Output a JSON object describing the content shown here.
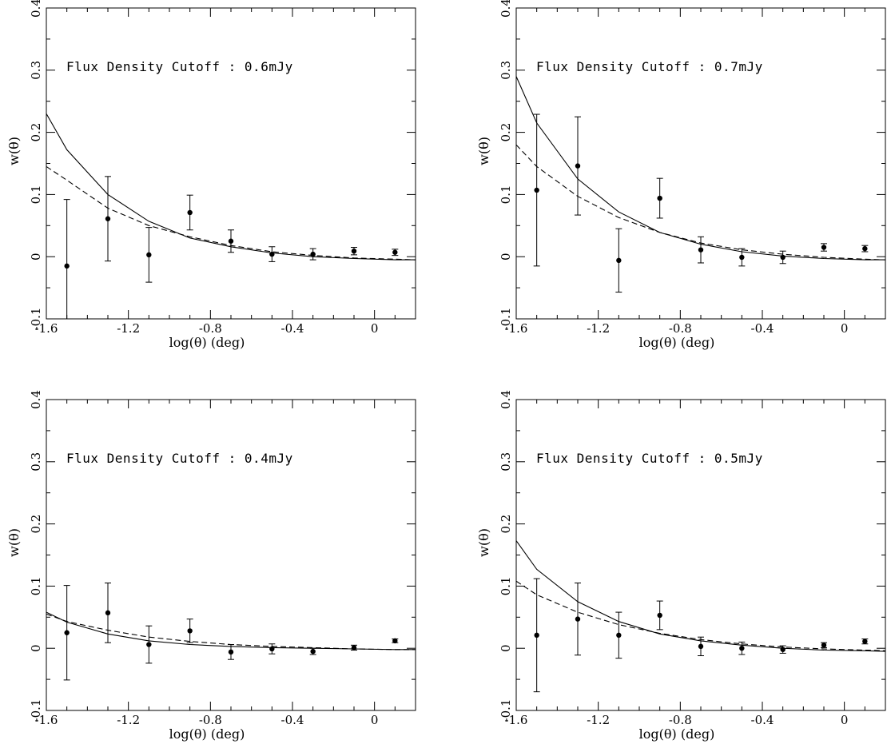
{
  "chart_data": [
    {
      "type": "line",
      "annotation": "Flux Density Cutoff : 0.6mJy",
      "xlabel": "log(θ) (deg)",
      "ylabel": "w(θ)",
      "xlim": [
        -1.6,
        0.2
      ],
      "ylim": [
        -0.1,
        0.4
      ],
      "xticks": [
        -1.6,
        -1.2,
        -0.8,
        -0.4,
        0
      ],
      "xtick_labels": [
        "-1.6",
        "-1.2",
        "-0.8",
        "-0.4",
        "0"
      ],
      "yticks": [
        -0.1,
        0,
        0.1,
        0.2,
        0.3,
        0.4
      ],
      "ytick_labels": [
        "-0.1",
        "0",
        "0.1",
        "0.2",
        "0.3",
        "0.4"
      ],
      "grid": false,
      "series": [
        {
          "style": "points_with_errorbars",
          "x": [
            -1.5,
            -1.3,
            -1.1,
            -0.9,
            -0.7,
            -0.5,
            -0.3,
            -0.1,
            0.1
          ],
          "y": [
            -0.015,
            0.061,
            0.003,
            0.071,
            0.025,
            0.004,
            0.004,
            0.009,
            0.007
          ],
          "yerr": [
            0.107,
            0.068,
            0.044,
            0.028,
            0.018,
            0.012,
            0.009,
            0.006,
            0.005
          ]
        },
        {
          "style": "solid",
          "x": [
            -1.6,
            -1.5,
            -1.3,
            -1.1,
            -0.9,
            -0.7,
            -0.5,
            -0.3,
            -0.1,
            0.1,
            0.2
          ],
          "y": [
            0.23,
            0.172,
            0.1,
            0.057,
            0.03,
            0.016,
            0.006,
            0.0,
            -0.003,
            -0.005,
            -0.005
          ]
        },
        {
          "style": "dashed",
          "x": [
            -1.6,
            -1.5,
            -1.3,
            -1.1,
            -0.9,
            -0.7,
            -0.5,
            -0.3,
            -0.1,
            0.1,
            0.2
          ],
          "y": [
            0.145,
            0.123,
            0.078,
            0.05,
            0.032,
            0.018,
            0.008,
            0.002,
            -0.002,
            -0.004,
            -0.005
          ]
        }
      ]
    },
    {
      "type": "line",
      "annotation": "Flux Density Cutoff : 0.7mJy",
      "xlabel": "log(θ) (deg)",
      "ylabel": "w(θ)",
      "xlim": [
        -1.6,
        0.2
      ],
      "ylim": [
        -0.1,
        0.4
      ],
      "xticks": [
        -1.6,
        -1.2,
        -0.8,
        -0.4,
        0
      ],
      "xtick_labels": [
        "-1.6",
        "-1.2",
        "-0.8",
        "-0.4",
        "0"
      ],
      "yticks": [
        -0.1,
        0,
        0.1,
        0.2,
        0.3,
        0.4
      ],
      "ytick_labels": [
        "-0.1",
        "0",
        "0.1",
        "0.2",
        "0.3",
        "0.4"
      ],
      "grid": false,
      "series": [
        {
          "style": "points_with_errorbars",
          "x": [
            -1.5,
            -1.3,
            -1.1,
            -0.9,
            -0.7,
            -0.5,
            -0.3,
            -0.1,
            0.1
          ],
          "y": [
            0.107,
            0.146,
            -0.006,
            0.094,
            0.011,
            -0.001,
            -0.001,
            0.015,
            0.013
          ],
          "yerr": [
            0.122,
            0.079,
            0.051,
            0.032,
            0.021,
            0.014,
            0.01,
            0.006,
            0.005
          ]
        },
        {
          "style": "solid",
          "x": [
            -1.6,
            -1.5,
            -1.3,
            -1.1,
            -0.9,
            -0.7,
            -0.5,
            -0.3,
            -0.1,
            0.1,
            0.2
          ],
          "y": [
            0.29,
            0.215,
            0.125,
            0.072,
            0.039,
            0.02,
            0.008,
            0.001,
            -0.003,
            -0.005,
            -0.005
          ]
        },
        {
          "style": "dashed",
          "x": [
            -1.6,
            -1.5,
            -1.3,
            -1.1,
            -0.9,
            -0.7,
            -0.5,
            -0.3,
            -0.1,
            0.1,
            0.2
          ],
          "y": [
            0.18,
            0.145,
            0.097,
            0.063,
            0.039,
            0.022,
            0.011,
            0.004,
            -0.001,
            -0.004,
            -0.005
          ]
        }
      ]
    },
    {
      "type": "line",
      "annotation": "Flux Density Cutoff : 0.4mJy",
      "xlabel": "log(θ) (deg)",
      "ylabel": "w(θ)",
      "xlim": [
        -1.6,
        0.2
      ],
      "ylim": [
        -0.1,
        0.4
      ],
      "xticks": [
        -1.6,
        -1.2,
        -0.8,
        -0.4,
        0
      ],
      "xtick_labels": [
        "-1.6",
        "-1.2",
        "-0.8",
        "-0.4",
        "0"
      ],
      "yticks": [
        -0.1,
        0,
        0.1,
        0.2,
        0.3,
        0.4
      ],
      "ytick_labels": [
        "-0.1",
        "0",
        "0.1",
        "0.2",
        "0.3",
        "0.4"
      ],
      "grid": false,
      "series": [
        {
          "style": "points_with_errorbars",
          "x": [
            -1.5,
            -1.3,
            -1.1,
            -0.9,
            -0.7,
            -0.5,
            -0.3,
            -0.1,
            0.1
          ],
          "y": [
            0.025,
            0.057,
            0.006,
            0.028,
            -0.006,
            -0.001,
            -0.005,
            0.001,
            0.012
          ],
          "yerr": [
            0.076,
            0.048,
            0.03,
            0.019,
            0.012,
            0.008,
            0.005,
            0.004,
            0.003
          ]
        },
        {
          "style": "solid",
          "x": [
            -1.6,
            -1.5,
            -1.3,
            -1.1,
            -0.9,
            -0.7,
            -0.5,
            -0.3,
            -0.1,
            0.1,
            0.2
          ],
          "y": [
            0.058,
            0.042,
            0.023,
            0.012,
            0.006,
            0.003,
            0.001,
            0.0,
            -0.001,
            -0.002,
            -0.002
          ]
        },
        {
          "style": "dashed",
          "x": [
            -1.6,
            -1.5,
            -1.3,
            -1.1,
            -0.9,
            -0.7,
            -0.5,
            -0.3,
            -0.1,
            0.1,
            0.2
          ],
          "y": [
            0.055,
            0.043,
            0.029,
            0.018,
            0.011,
            0.006,
            0.003,
            0.001,
            -0.001,
            -0.002,
            -0.002
          ]
        }
      ]
    },
    {
      "type": "line",
      "annotation": "Flux Density Cutoff : 0.5mJy",
      "xlabel": "log(θ) (deg)",
      "ylabel": "w(θ)",
      "xlim": [
        -1.6,
        0.2
      ],
      "ylim": [
        -0.1,
        0.4
      ],
      "xticks": [
        -1.6,
        -1.2,
        -0.8,
        -0.4,
        0
      ],
      "xtick_labels": [
        "-1.6",
        "-1.2",
        "-0.8",
        "-0.4",
        "0"
      ],
      "yticks": [
        -0.1,
        0,
        0.1,
        0.2,
        0.3,
        0.4
      ],
      "ytick_labels": [
        "-0.1",
        "0",
        "0.1",
        "0.2",
        "0.3",
        "0.4"
      ],
      "grid": false,
      "series": [
        {
          "style": "points_with_errorbars",
          "x": [
            -1.5,
            -1.3,
            -1.1,
            -0.9,
            -0.7,
            -0.5,
            -0.3,
            -0.1,
            0.1
          ],
          "y": [
            0.021,
            0.047,
            0.021,
            0.053,
            0.003,
            0.0,
            -0.002,
            0.005,
            0.011
          ],
          "yerr": [
            0.091,
            0.058,
            0.037,
            0.023,
            0.015,
            0.01,
            0.006,
            0.004,
            0.004
          ]
        },
        {
          "style": "solid",
          "x": [
            -1.6,
            -1.5,
            -1.3,
            -1.1,
            -0.9,
            -0.7,
            -0.5,
            -0.3,
            -0.1,
            0.1,
            0.2
          ],
          "y": [
            0.173,
            0.127,
            0.075,
            0.043,
            0.023,
            0.012,
            0.005,
            0.0,
            -0.003,
            -0.004,
            -0.005
          ]
        },
        {
          "style": "dashed",
          "x": [
            -1.6,
            -1.5,
            -1.3,
            -1.1,
            -0.9,
            -0.7,
            -0.5,
            -0.3,
            -0.1,
            0.1,
            0.2
          ],
          "y": [
            0.108,
            0.086,
            0.058,
            0.038,
            0.024,
            0.014,
            0.007,
            0.002,
            -0.001,
            -0.003,
            -0.004
          ]
        }
      ]
    }
  ]
}
